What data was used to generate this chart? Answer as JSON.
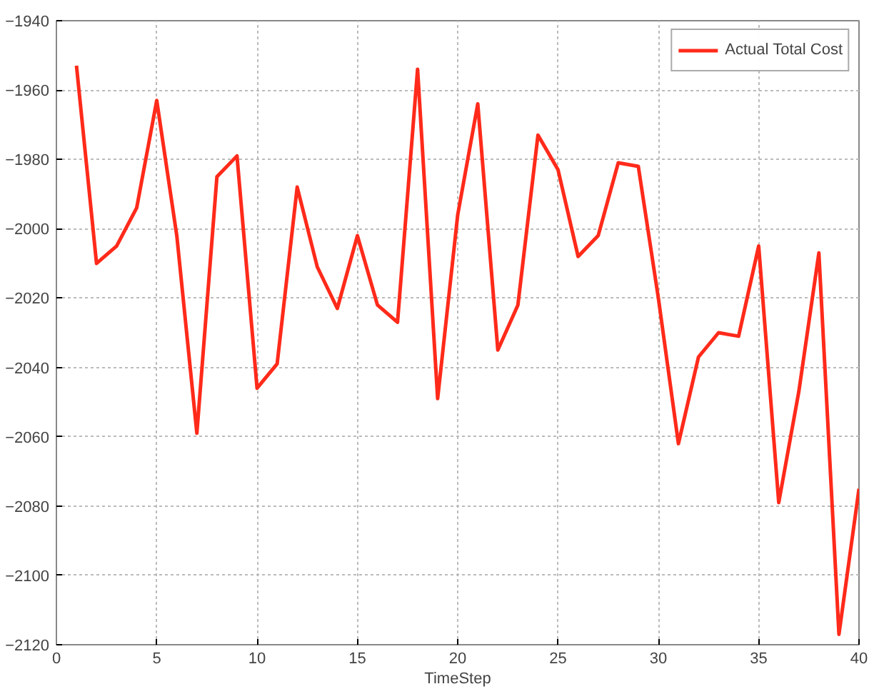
{
  "chart_data": {
    "type": "line",
    "xlabel": "TimeStep",
    "x": [
      1,
      2,
      3,
      4,
      5,
      6,
      7,
      8,
      9,
      10,
      11,
      12,
      13,
      14,
      15,
      16,
      17,
      18,
      19,
      20,
      21,
      22,
      23,
      24,
      25,
      26,
      27,
      28,
      29,
      30,
      31,
      32,
      33,
      34,
      35,
      36,
      37,
      38,
      39,
      40
    ],
    "series": [
      {
        "name": "Actual Total Cost",
        "color": "#ff2a1a",
        "values": [
          -1953,
          -2010,
          -2005,
          -1994,
          -1963,
          -2002,
          -2059,
          -1985,
          -1979,
          -2046,
          -2039,
          -1988,
          -2011,
          -2023,
          -2002,
          -2022,
          -2027,
          -1954,
          -2049,
          -1996,
          -1964,
          -2035,
          -2022,
          -1973,
          -1983,
          -2008,
          -2002,
          -1981,
          -1982,
          -2020,
          -2062,
          -2037,
          -2030,
          -2031,
          -2005,
          -2079,
          -2047,
          -2007,
          -2117,
          -2075
        ]
      }
    ],
    "xlim": [
      0,
      40
    ],
    "xticks": [
      0,
      5,
      10,
      15,
      20,
      25,
      30,
      35,
      40
    ],
    "ylim": [
      -2120,
      -1940
    ],
    "yticks": [
      -2120,
      -2100,
      -2080,
      -2060,
      -2040,
      -2020,
      -2000,
      -1980,
      -1960,
      -1940
    ],
    "grid": true,
    "legend": "top right",
    "marker": "none",
    "line_style": "solid"
  }
}
